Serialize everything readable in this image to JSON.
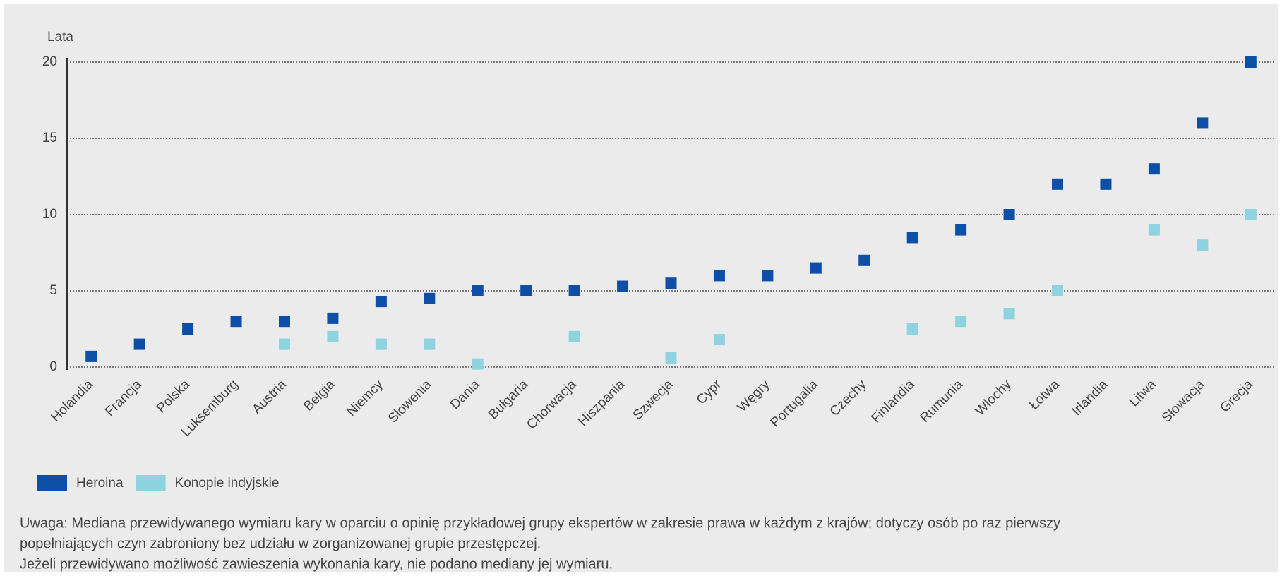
{
  "chart_data": {
    "type": "scatter",
    "y_label": "Lata",
    "categories": [
      "Holandia",
      "Francja",
      "Polska",
      "Luksemburg",
      "Austria",
      "Belgia",
      "Niemcy",
      "Słowenia",
      "Dania",
      "Bułgaria",
      "Chorwacja",
      "Hiszpania",
      "Szwecja",
      "Cypr",
      "Węgry",
      "Portugalia",
      "Czechy",
      "Finlandia",
      "Rumunia",
      "Włochy",
      "Łotwa",
      "Irlandia",
      "Litwa",
      "Słowacja",
      "Grecja"
    ],
    "series": [
      {
        "name": "Heroina",
        "color": "#0d4ea6",
        "values": [
          0.7,
          1.5,
          2.5,
          3,
          3,
          3.2,
          4.3,
          4.5,
          5,
          5,
          5,
          5.3,
          5.5,
          6,
          6,
          6.5,
          7,
          8.5,
          9,
          10,
          12,
          12,
          13,
          16,
          20
        ]
      },
      {
        "name": "Konopie indyjskie",
        "color": "#8dd3e0",
        "values": [
          null,
          null,
          null,
          null,
          1.5,
          2,
          1.5,
          1.5,
          0.2,
          null,
          2,
          null,
          0.6,
          1.8,
          null,
          null,
          null,
          2.5,
          3,
          3.5,
          5,
          null,
          9,
          8,
          10
        ]
      }
    ],
    "ylim": [
      0,
      20
    ],
    "yticks": [
      0,
      5,
      10,
      15,
      20
    ],
    "grid": true,
    "notes": [
      "Uwaga: Mediana przewidywanego wymiaru kary w oparciu o opinię przykładowej grupy ekspertów w zakresie prawa w każdym z krajów; dotyczy osób po raz pierwszy",
      "popełniających czyn zabroniony bez udziału w zorganizowanej grupie przestępczej.",
      "Jeżeli przewidywano możliwość zawieszenia wykonania kary, nie podano mediany jej wymiaru."
    ]
  }
}
